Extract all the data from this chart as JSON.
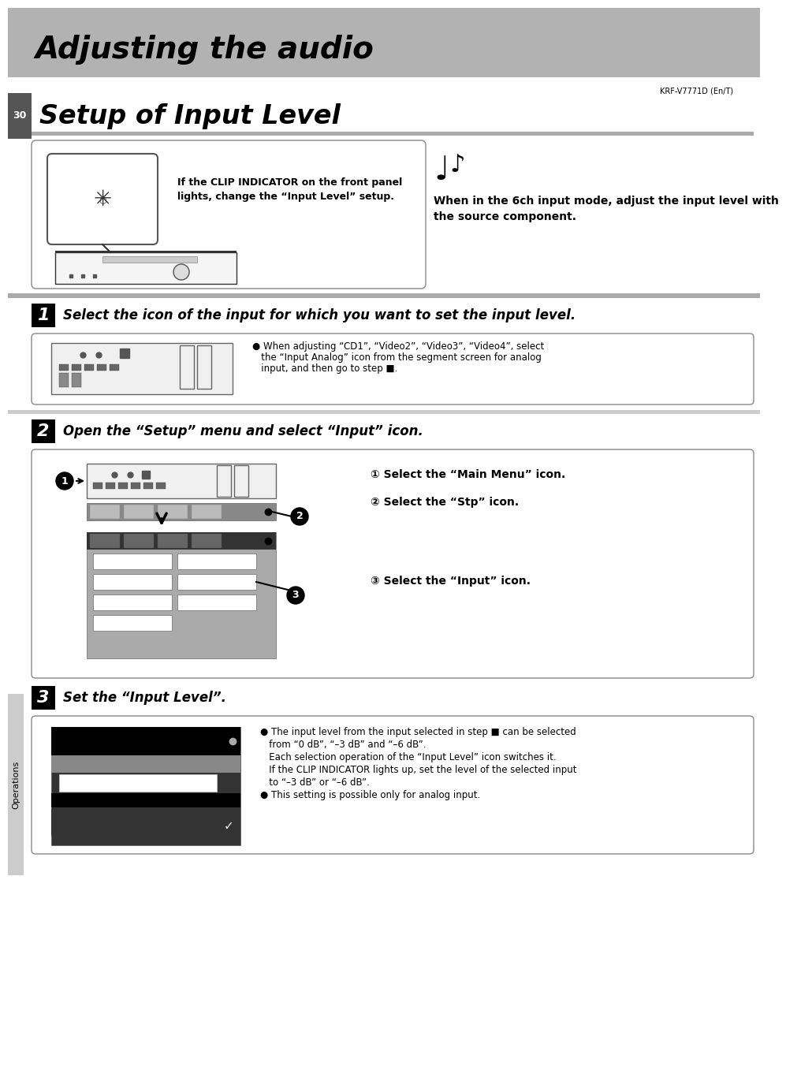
{
  "title_main": "Adjusting the audio",
  "title_sub": "Setup of Input Level",
  "page_num": "30",
  "model": "KRF-V7771D (En/T)",
  "step1_title": "Select the icon of the input for which you want to set the input level.",
  "step2_title": "Open the “Setup” menu and select “Input” icon.",
  "step3_title": "Set the “Input Level”.",
  "note1_line1": "If the CLIP INDICATOR on the front panel",
  "note1_line2": "lights, change the “Input Level” setup.",
  "note2_line1": "When in the 6ch input mode, adjust the input level with",
  "note2_line2": "the source component.",
  "step1_note_line1": "● When adjusting “CD1”, “Video2”, “Video3”, “Video4”, select",
  "step1_note_line2": "   the “Input Analog” icon from the segment screen for analog",
  "step1_note_line3": "   input, and then go to step ■.",
  "step2_note1": "① Select the “Main Menu” icon.",
  "step2_note2": "② Select the “Stp” icon.",
  "step2_note3": "③ Select the “Input” icon.",
  "step3_note_line1": "● The input level from the input selected in step ■ can be selected",
  "step3_note_line2": "   from “0 dB”, “–3 dB” and “–6 dB”.",
  "step3_note_line3": "   Each selection operation of the “Input Level” icon switches it.",
  "step3_note_line4": "   If the CLIP INDICATOR lights up, set the level of the selected input",
  "step3_note_line5": "   to “–3 dB” or “–6 dB”.",
  "step3_note_line6": "● This setting is possible only for analog input.",
  "sidebar_text": "Operations"
}
